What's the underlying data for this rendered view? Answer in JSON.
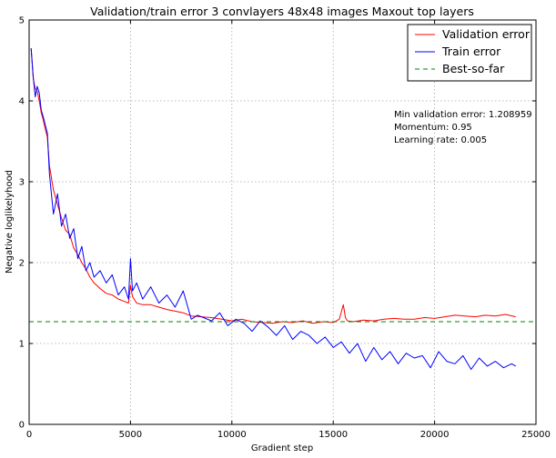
{
  "chart_data": {
    "type": "line",
    "title": "Validation/train error 3 convlayers 48x48 images Maxout top layers",
    "xlabel": "Gradient step",
    "ylabel": "Negative loglikelyhood",
    "xlim": [
      0,
      25000
    ],
    "ylim": [
      0,
      5
    ],
    "xticks": [
      0,
      5000,
      10000,
      15000,
      20000,
      25000
    ],
    "yticks": [
      0,
      1,
      2,
      3,
      4,
      5
    ],
    "grid": true,
    "legend_position": "top-right",
    "annotations": [
      "Min validation error: 1.208959",
      "Momentum: 0.95",
      "Learning rate: 0.005"
    ],
    "series": [
      {
        "name": "Validation error",
        "color": "#ff0000",
        "style": "solid",
        "x": [
          100,
          200,
          300,
          400,
          500,
          600,
          700,
          800,
          900,
          1000,
          1200,
          1400,
          1600,
          1800,
          2000,
          2200,
          2400,
          2600,
          2800,
          3000,
          3200,
          3500,
          3800,
          4100,
          4400,
          4700,
          4900,
          5000,
          5100,
          5300,
          5600,
          6000,
          6400,
          6800,
          7200,
          7600,
          8000,
          8500,
          9000,
          9500,
          10000,
          10500,
          11000,
          11500,
          12000,
          12500,
          13000,
          13500,
          14000,
          14500,
          15000,
          15300,
          15500,
          15600,
          15700,
          16000,
          16500,
          17000,
          17500,
          18000,
          18500,
          19000,
          19500,
          20000,
          20500,
          21000,
          21500,
          22000,
          22500,
          23000,
          23500,
          24000
        ],
        "y": [
          4.65,
          4.28,
          4.15,
          4.12,
          4.0,
          3.85,
          3.76,
          3.65,
          3.55,
          3.2,
          2.9,
          2.72,
          2.55,
          2.4,
          2.35,
          2.18,
          2.1,
          2.0,
          1.92,
          1.82,
          1.75,
          1.68,
          1.62,
          1.6,
          1.55,
          1.52,
          1.5,
          1.72,
          1.58,
          1.5,
          1.48,
          1.48,
          1.45,
          1.42,
          1.4,
          1.38,
          1.34,
          1.33,
          1.32,
          1.3,
          1.28,
          1.3,
          1.27,
          1.26,
          1.25,
          1.27,
          1.26,
          1.28,
          1.25,
          1.27,
          1.26,
          1.3,
          1.48,
          1.32,
          1.28,
          1.27,
          1.29,
          1.28,
          1.3,
          1.31,
          1.3,
          1.3,
          1.32,
          1.31,
          1.33,
          1.35,
          1.34,
          1.33,
          1.35,
          1.34,
          1.36,
          1.33
        ]
      },
      {
        "name": "Train error",
        "color": "#0000ff",
        "style": "solid",
        "x": [
          100,
          200,
          300,
          400,
          500,
          600,
          700,
          800,
          900,
          1000,
          1200,
          1400,
          1600,
          1800,
          2000,
          2200,
          2400,
          2600,
          2800,
          3000,
          3200,
          3500,
          3800,
          4100,
          4400,
          4700,
          4900,
          5000,
          5100,
          5300,
          5600,
          6000,
          6400,
          6800,
          7200,
          7600,
          8000,
          8300,
          8600,
          9000,
          9400,
          9800,
          10200,
          10600,
          11000,
          11400,
          11800,
          12200,
          12600,
          13000,
          13400,
          13800,
          14200,
          14600,
          15000,
          15400,
          15800,
          16200,
          16600,
          17000,
          17400,
          17800,
          18200,
          18600,
          19000,
          19400,
          19800,
          20200,
          20600,
          21000,
          21400,
          21800,
          22200,
          22600,
          23000,
          23400,
          23800,
          24000
        ],
        "y": [
          4.65,
          4.3,
          4.05,
          4.18,
          4.1,
          3.88,
          3.8,
          3.7,
          3.6,
          3.1,
          2.6,
          2.85,
          2.45,
          2.6,
          2.3,
          2.42,
          2.05,
          2.2,
          1.9,
          2.0,
          1.82,
          1.9,
          1.75,
          1.85,
          1.6,
          1.7,
          1.55,
          2.05,
          1.65,
          1.75,
          1.55,
          1.7,
          1.5,
          1.6,
          1.45,
          1.65,
          1.3,
          1.35,
          1.32,
          1.28,
          1.38,
          1.22,
          1.3,
          1.25,
          1.15,
          1.28,
          1.2,
          1.1,
          1.22,
          1.05,
          1.15,
          1.1,
          1.0,
          1.08,
          0.95,
          1.02,
          0.88,
          1.0,
          0.78,
          0.95,
          0.8,
          0.9,
          0.75,
          0.88,
          0.82,
          0.85,
          0.7,
          0.9,
          0.78,
          0.75,
          0.85,
          0.68,
          0.82,
          0.72,
          0.78,
          0.7,
          0.75,
          0.72
        ]
      },
      {
        "name": "Best-so-far",
        "color": "#008000",
        "style": "dashed",
        "x": [
          0,
          25000
        ],
        "y": [
          1.27,
          1.27
        ]
      }
    ]
  }
}
